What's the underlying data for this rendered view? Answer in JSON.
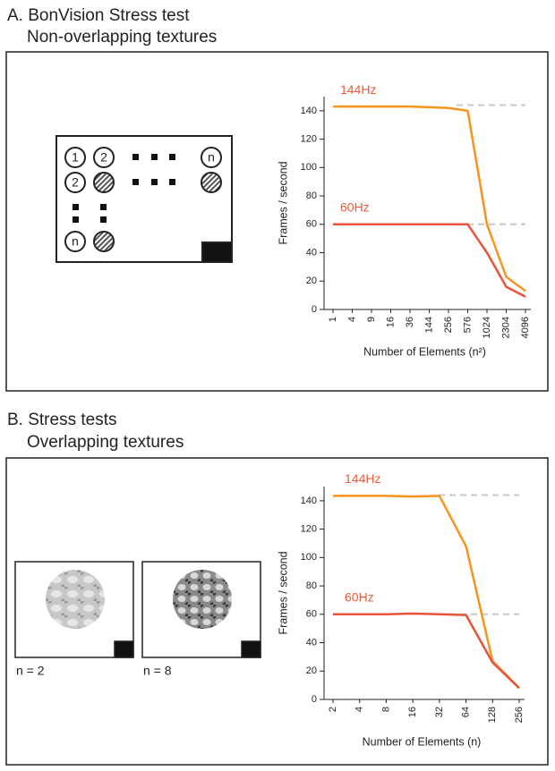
{
  "panels": [
    {
      "title": "A. BonVision Stress test",
      "subtitle": "Non-overlapping textures",
      "diagram_labels": [
        "1",
        "2",
        "2",
        "n",
        "n"
      ]
    },
    {
      "title": "B. Stress tests",
      "subtitle": "Overlapping textures",
      "diagram_labels": [
        "n = 2",
        "n = 8"
      ]
    }
  ],
  "chart_data": [
    {
      "type": "line",
      "x_label": "Number of Elements (n²)",
      "y_label": "Frames / second",
      "categories": [
        "1",
        "4",
        "9",
        "16",
        "36",
        "144",
        "256",
        "576",
        "1024",
        "2304",
        "4096"
      ],
      "ylim": [
        0,
        150
      ],
      "yticks": [
        0,
        20,
        40,
        60,
        80,
        100,
        120,
        140
      ],
      "reference_lines": [
        144,
        60
      ],
      "reference_color": "#c8c8c8",
      "series": [
        {
          "name": "144Hz",
          "color": "#f7941d",
          "values": [
            143,
            143,
            143,
            143,
            143,
            142.5,
            142,
            140,
            60,
            23,
            13
          ]
        },
        {
          "name": "60Hz",
          "color": "#e8543a",
          "values": [
            60,
            60,
            60,
            60,
            60,
            60,
            60,
            60,
            40,
            16,
            9
          ]
        }
      ]
    },
    {
      "type": "line",
      "x_label": "Number of Elements (n)",
      "y_label": "Frames / second",
      "categories": [
        "2",
        "4",
        "8",
        "16",
        "32",
        "64",
        "128",
        "256"
      ],
      "ylim": [
        0,
        150
      ],
      "yticks": [
        0,
        20,
        40,
        60,
        80,
        100,
        120,
        140
      ],
      "reference_lines": [
        144,
        60
      ],
      "reference_color": "#c8c8c8",
      "series": [
        {
          "name": "144Hz",
          "color": "#f7941d",
          "values": [
            143.5,
            143.5,
            143.5,
            143,
            143.5,
            108,
            27,
            8
          ]
        },
        {
          "name": "60Hz",
          "color": "#e8543a",
          "values": [
            60,
            60,
            60,
            60.5,
            60,
            59.5,
            26,
            8
          ]
        }
      ]
    }
  ]
}
